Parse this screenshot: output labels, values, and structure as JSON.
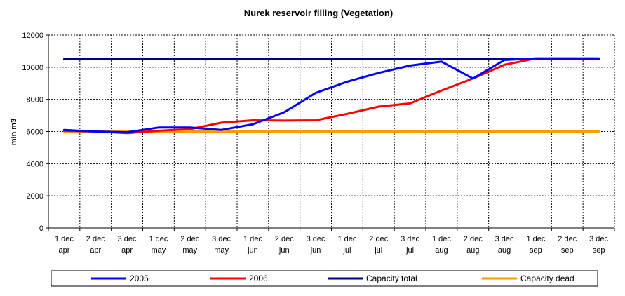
{
  "chart_data": {
    "type": "line",
    "title": "Nurek reservoir filling (Vegetation)",
    "ylabel": "mln m3",
    "xlabel": "",
    "ylim": [
      0,
      12000
    ],
    "yticks": [
      0,
      2000,
      4000,
      6000,
      8000,
      10000,
      12000
    ],
    "grid": true,
    "legend_placement": "bottom",
    "categories": [
      [
        "1 dec",
        "apr"
      ],
      [
        "2 dec",
        "apr"
      ],
      [
        "3 dec",
        "apr"
      ],
      [
        "1 dec",
        "may"
      ],
      [
        "2 dec",
        "may"
      ],
      [
        "3 dec",
        "may"
      ],
      [
        "1 dec",
        "jun"
      ],
      [
        "2 dec",
        "jun"
      ],
      [
        "3 dec",
        "jun"
      ],
      [
        "1 dec",
        "jul"
      ],
      [
        "2 dec",
        "jul"
      ],
      [
        "3 dec",
        "jul"
      ],
      [
        "1 dec",
        "aug"
      ],
      [
        "2 dec",
        "aug"
      ],
      [
        "3 dec",
        "aug"
      ],
      [
        "1 dec",
        "sep"
      ],
      [
        "2 dec",
        "sep"
      ],
      [
        "3 dec",
        "sep"
      ]
    ],
    "series": [
      {
        "name": "2005",
        "color": "#0000ff",
        "values": [
          6100,
          6000,
          5950,
          6250,
          6250,
          6100,
          6450,
          7200,
          8400,
          9100,
          9650,
          10100,
          10350,
          9300,
          10450,
          10550,
          10550,
          10550
        ]
      },
      {
        "name": "2006",
        "color": "#ff0000",
        "values": [
          6050,
          6000,
          5900,
          6050,
          6150,
          6550,
          6700,
          6680,
          6700,
          7100,
          7550,
          7750,
          8550,
          9300,
          10150,
          10550,
          10550,
          10550
        ]
      },
      {
        "name": "Capacity total",
        "color": "#000080",
        "values": [
          10500,
          10500,
          10500,
          10500,
          10500,
          10500,
          10500,
          10500,
          10500,
          10500,
          10500,
          10500,
          10500,
          10500,
          10500,
          10500,
          10500,
          10500
        ]
      },
      {
        "name": "Capacity dead",
        "color": "#ff9900",
        "values": [
          6000,
          6000,
          6000,
          6000,
          6000,
          6000,
          6000,
          6000,
          6000,
          6000,
          6000,
          6000,
          6000,
          6000,
          6000,
          6000,
          6000,
          6000
        ]
      }
    ]
  }
}
